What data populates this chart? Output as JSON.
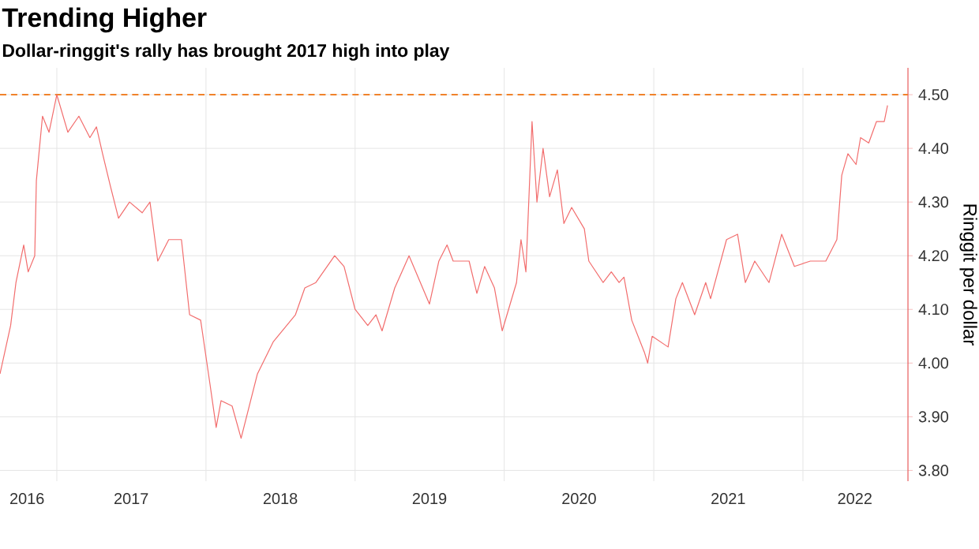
{
  "chart_data": {
    "type": "line",
    "title": "Trending Higher",
    "subtitle": "Dollar-ringgit's rally has brought 2017 high into play",
    "ylabel": "Ringgit per dollar",
    "x": [
      "2016-08-15",
      "2016-09-10",
      "2016-09-23",
      "2016-10-12",
      "2016-10-23",
      "2016-11-08",
      "2016-11-12",
      "2016-11-27",
      "2016-12-13",
      "2017-01-01",
      "2017-01-28",
      "2017-02-24",
      "2017-03-23",
      "2017-04-08",
      "2017-04-23",
      "2017-05-12",
      "2017-06-01",
      "2017-06-28",
      "2017-07-29",
      "2017-08-17",
      "2017-09-05",
      "2017-10-02",
      "2017-11-02",
      "2017-11-22",
      "2017-12-19",
      "2018-01-11",
      "2018-01-26",
      "2018-02-07",
      "2018-03-06",
      "2018-03-28",
      "2018-05-07",
      "2018-06-15",
      "2018-08-08",
      "2018-08-31",
      "2018-09-27",
      "2018-11-12",
      "2018-12-05",
      "2019-01-01",
      "2019-02-01",
      "2019-02-21",
      "2019-03-08",
      "2019-04-08",
      "2019-05-13",
      "2019-07-02",
      "2019-07-25",
      "2019-08-14",
      "2019-08-29",
      "2019-10-07",
      "2019-10-26",
      "2019-11-14",
      "2019-12-08",
      "2019-12-27",
      "2020-01-31",
      "2020-02-11",
      "2020-02-23",
      "2020-03-09",
      "2020-03-21",
      "2020-04-05",
      "2020-04-21",
      "2020-05-10",
      "2020-05-26",
      "2020-06-14",
      "2020-07-15",
      "2020-07-26",
      "2020-08-30",
      "2020-09-19",
      "2020-10-08",
      "2020-10-20",
      "2020-11-08",
      "2020-12-09",
      "2020-12-17",
      "2020-12-28",
      "2021-02-05",
      "2021-02-24",
      "2021-03-12",
      "2021-04-11",
      "2021-05-08",
      "2021-05-20",
      "2021-06-28",
      "2021-07-25",
      "2021-08-13",
      "2021-09-05",
      "2021-10-10",
      "2021-11-10",
      "2021-12-11",
      "2022-01-19",
      "2022-02-26",
      "2022-03-25",
      "2022-04-06",
      "2022-04-21",
      "2022-05-11",
      "2022-05-22",
      "2022-06-11",
      "2022-06-30",
      "2022-07-19",
      "2022-07-27"
    ],
    "series": [
      {
        "color": "#f26d6d",
        "values": [
          3.98,
          4.07,
          4.15,
          4.22,
          4.17,
          4.2,
          4.34,
          4.46,
          4.43,
          4.5,
          4.43,
          4.46,
          4.42,
          4.44,
          4.39,
          4.33,
          4.27,
          4.3,
          4.28,
          4.3,
          4.19,
          4.23,
          4.23,
          4.09,
          4.08,
          3.96,
          3.88,
          3.93,
          3.92,
          3.86,
          3.98,
          4.04,
          4.09,
          4.14,
          4.15,
          4.2,
          4.18,
          4.1,
          4.07,
          4.09,
          4.06,
          4.14,
          4.2,
          4.11,
          4.19,
          4.22,
          4.19,
          4.19,
          4.13,
          4.18,
          4.14,
          4.06,
          4.15,
          4.23,
          4.17,
          4.45,
          4.3,
          4.4,
          4.31,
          4.36,
          4.26,
          4.29,
          4.25,
          4.19,
          4.15,
          4.17,
          4.15,
          4.16,
          4.08,
          4.02,
          4.0,
          4.05,
          4.03,
          4.12,
          4.15,
          4.09,
          4.15,
          4.12,
          4.23,
          4.24,
          4.15,
          4.19,
          4.15,
          4.24,
          4.18,
          4.19,
          4.19,
          4.23,
          4.35,
          4.39,
          4.37,
          4.42,
          4.41,
          4.45,
          4.45,
          4.48
        ]
      }
    ],
    "xlim": [
      "2016-08-15",
      "2022-09-15"
    ],
    "xticks": [
      {
        "value": "2016-10-20",
        "label": "2016"
      },
      {
        "value": "2017-01-01",
        "label": null
      },
      {
        "value": "2017-07-02",
        "label": "2017"
      },
      {
        "value": "2018-01-01",
        "label": null
      },
      {
        "value": "2018-07-02",
        "label": "2018"
      },
      {
        "value": "2019-01-01",
        "label": null
      },
      {
        "value": "2019-07-02",
        "label": "2019"
      },
      {
        "value": "2020-01-01",
        "label": null
      },
      {
        "value": "2020-07-02",
        "label": "2020"
      },
      {
        "value": "2021-01-01",
        "label": null
      },
      {
        "value": "2021-07-02",
        "label": "2021"
      },
      {
        "value": "2022-01-01",
        "label": null
      },
      {
        "value": "2022-05-08",
        "label": "2022"
      }
    ],
    "ylim": [
      3.78,
      4.55
    ],
    "yticks": [
      {
        "value": 3.8,
        "label": "3.80"
      },
      {
        "value": 3.9,
        "label": "3.90"
      },
      {
        "value": 4.0,
        "label": "4.00"
      },
      {
        "value": 4.1,
        "label": "4.10"
      },
      {
        "value": 4.2,
        "label": "4.20"
      },
      {
        "value": 4.3,
        "label": "4.30"
      },
      {
        "value": 4.4,
        "label": "4.40"
      },
      {
        "value": 4.5,
        "label": "4.50"
      }
    ],
    "ref_lines": [
      {
        "axis": "y",
        "value": 4.5,
        "color": "#f0822a",
        "line_style": "dashed"
      }
    ],
    "grid": true,
    "marker": "none",
    "line_style": "solid"
  }
}
